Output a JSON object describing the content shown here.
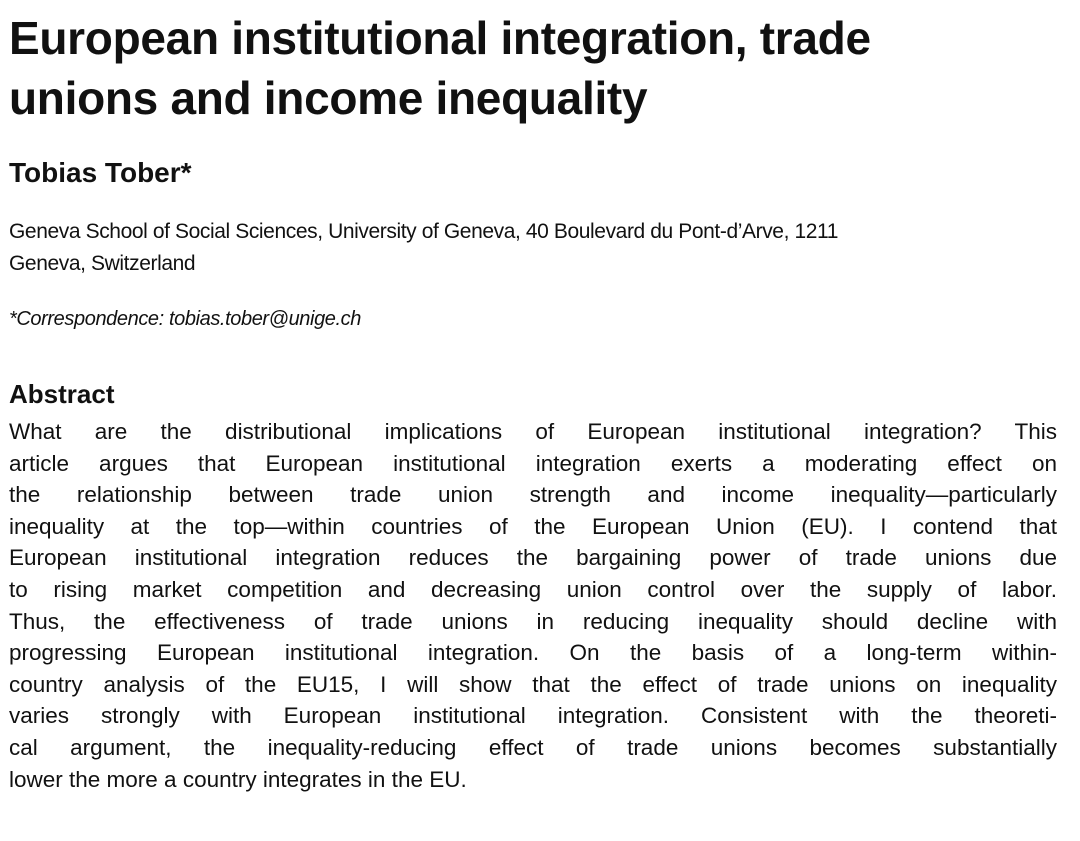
{
  "title": {
    "line1": "European institutional integration, trade",
    "line2": "unions and income inequality"
  },
  "author": "Tobias Tober*",
  "affiliation": {
    "line1": "Geneva School of Social Sciences, University of Geneva, 40 Boulevard du Pont-d’Arve, 1211",
    "line2": "Geneva, Switzerland"
  },
  "correspondence": "*Correspondence: tobias.tober@unige.ch",
  "abstract": {
    "heading": "Abstract",
    "lines": [
      "What are the distributional implications of European institutional integration? This",
      "article argues that European institutional integration exerts a moderating effect on",
      "the relationship between trade union strength and income inequality—particularly",
      "inequality at the top—within countries of the European Union (EU). I contend that",
      "European institutional integration reduces the bargaining power of trade unions due",
      "to rising market competition and decreasing union control over the supply of labor.",
      "Thus, the effectiveness of trade unions in reducing inequality should decline with",
      "progressing European institutional integration. On the basis of a long-term within-",
      "country analysis of the EU15, I will show that the effect of trade unions on inequality",
      "varies strongly with European institutional integration. Consistent with the theoreti-",
      "cal argument, the inequality-reducing effect of trade unions becomes substantially",
      "lower the more a country integrates in the EU."
    ]
  }
}
